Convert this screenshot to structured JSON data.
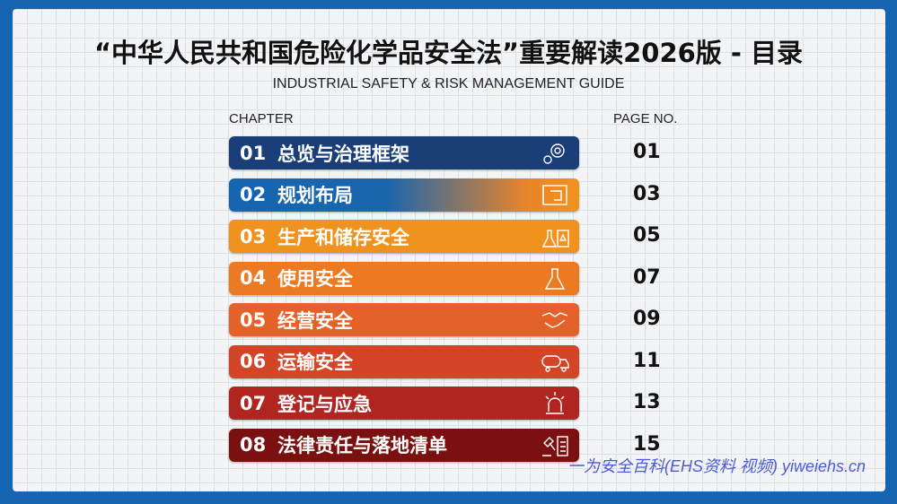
{
  "title": "“中华人民共和国危险化学品安全法”重要解读2026版 - 目录",
  "subtitle": "INDUSTRIAL SAFETY & RISK MANAGEMENT GUIDE",
  "headers": {
    "chapter": "CHAPTER",
    "page": "PAGE NO."
  },
  "chapters": [
    {
      "num": "01",
      "label": "总览与治理框架",
      "page": "01",
      "icon": "gear-icon",
      "color": "#1a3f78"
    },
    {
      "num": "02",
      "label": "规划布局",
      "page": "03",
      "icon": "blueprint-icon",
      "color": "#1565b0"
    },
    {
      "num": "03",
      "label": "生产和储存安全",
      "page": "05",
      "icon": "lab-storage-icon",
      "color": "#f0921e"
    },
    {
      "num": "04",
      "label": "使用安全",
      "page": "07",
      "icon": "flask-icon",
      "color": "#ec7a22"
    },
    {
      "num": "05",
      "label": "经营安全",
      "page": "09",
      "icon": "handshake-icon",
      "color": "#e4622a"
    },
    {
      "num": "06",
      "label": "运输安全",
      "page": "11",
      "icon": "tanker-truck-icon",
      "color": "#d44528"
    },
    {
      "num": "07",
      "label": "登记与应急",
      "page": "13",
      "icon": "alarm-light-icon",
      "color": "#b02520"
    },
    {
      "num": "08",
      "label": "法律责任与落地清单",
      "page": "15",
      "icon": "gavel-checklist-icon",
      "color": "#7a1010"
    }
  ],
  "watermark": "一为安全百科(EHS资料 视频) yiweiehs.cn"
}
